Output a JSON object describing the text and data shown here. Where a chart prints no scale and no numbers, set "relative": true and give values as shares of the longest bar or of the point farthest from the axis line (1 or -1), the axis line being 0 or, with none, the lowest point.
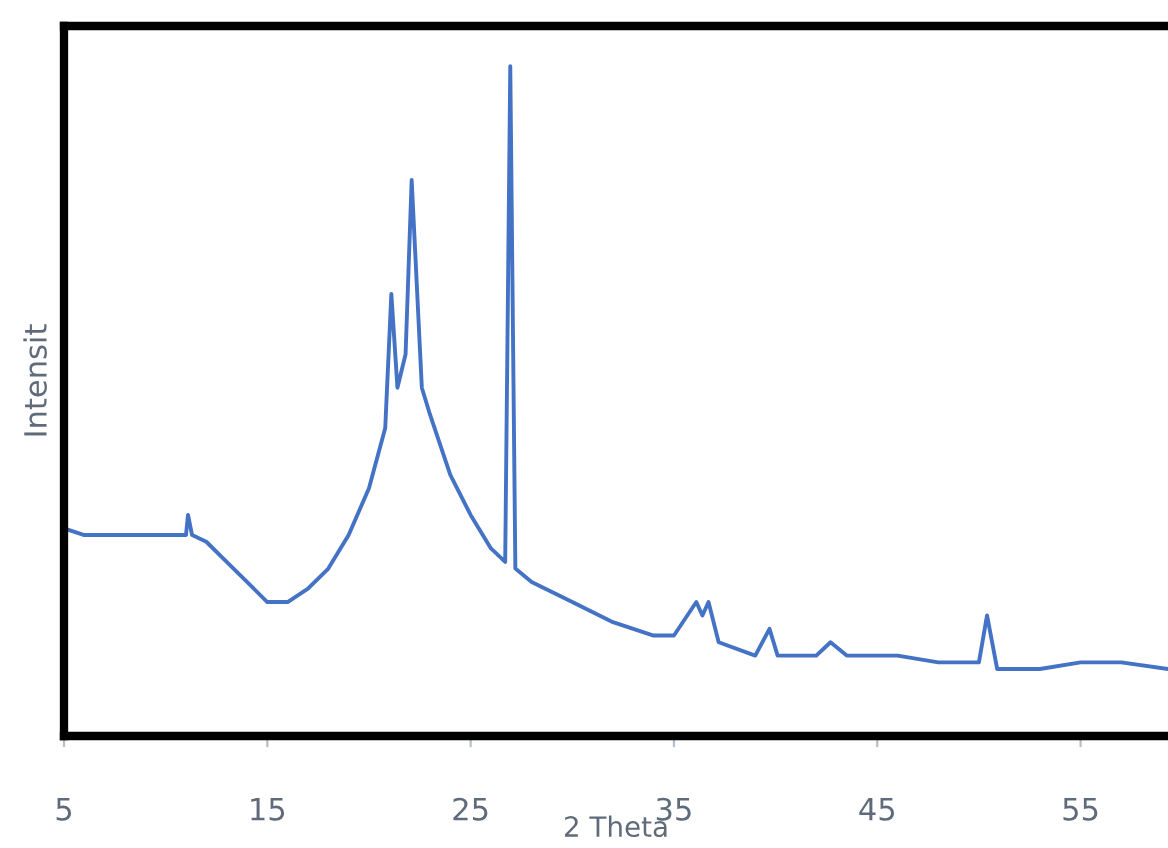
{
  "chart_data": {
    "type": "line",
    "xlabel": "2 Theta",
    "ylabel": "Intensit",
    "relative": true,
    "xlim": [
      5,
      59.3
    ],
    "xticks": [
      5,
      15,
      25,
      35,
      45,
      55
    ],
    "grid": false,
    "marker": "none",
    "line_style": "solid",
    "series": [
      {
        "color": "#4472c4",
        "x": [
          5,
          6,
          7,
          8,
          9,
          10,
          11,
          11.1,
          11.3,
          12,
          13,
          14,
          15,
          16,
          17,
          18,
          19,
          20,
          20.8,
          21.1,
          21.4,
          21.8,
          22.1,
          22.6,
          23,
          24,
          25,
          26,
          26.7,
          26.95,
          27.2,
          28,
          30,
          32,
          34,
          35,
          36.1,
          36.4,
          36.7,
          37.2,
          39,
          39.7,
          40.1,
          41,
          42,
          42.7,
          43.5,
          46,
          48,
          50,
          50.4,
          50.9,
          53,
          55,
          57,
          59.3
        ],
        "values": [
          0.31,
          0.3,
          0.3,
          0.3,
          0.3,
          0.3,
          0.3,
          0.33,
          0.3,
          0.29,
          0.26,
          0.23,
          0.2,
          0.2,
          0.22,
          0.25,
          0.3,
          0.37,
          0.46,
          0.66,
          0.52,
          0.57,
          0.83,
          0.52,
          0.48,
          0.39,
          0.33,
          0.28,
          0.26,
          1.0,
          0.25,
          0.23,
          0.2,
          0.17,
          0.15,
          0.15,
          0.2,
          0.18,
          0.2,
          0.14,
          0.12,
          0.16,
          0.12,
          0.12,
          0.12,
          0.14,
          0.12,
          0.12,
          0.11,
          0.11,
          0.18,
          0.1,
          0.1,
          0.11,
          0.11,
          0.1
        ]
      }
    ]
  }
}
